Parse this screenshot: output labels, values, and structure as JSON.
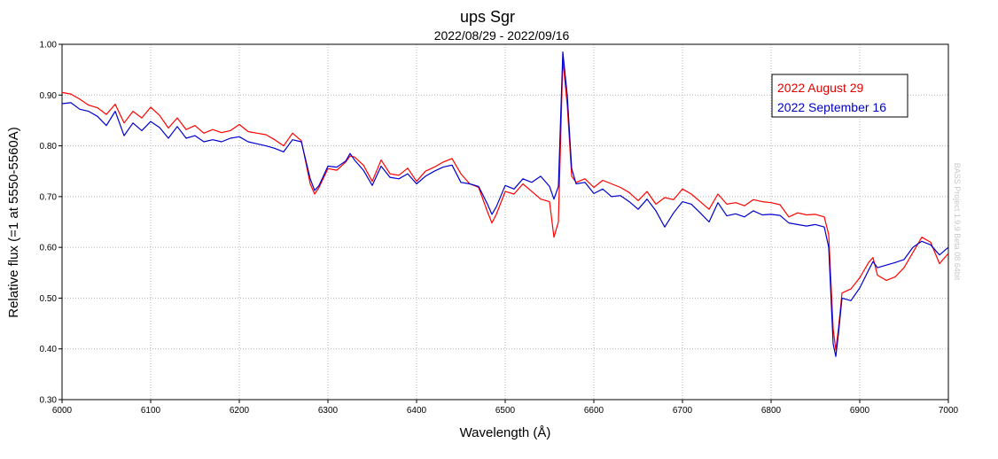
{
  "chart_data": {
    "type": "line",
    "title": "ups Sgr",
    "subtitle": "2022/08/29 - 2022/09/16",
    "xlabel": "Wavelength (Å)",
    "ylabel": "Relative flux (=1 at 5550-5560A)",
    "xlim": [
      6000,
      7000
    ],
    "ylim": [
      0.3,
      1.0
    ],
    "x_ticks": [
      "6000",
      "6100",
      "6200",
      "6300",
      "6400",
      "6500",
      "6600",
      "6700",
      "6800",
      "6900",
      "7000"
    ],
    "y_ticks": [
      "0.30",
      "0.40",
      "0.50",
      "0.60",
      "0.70",
      "0.80",
      "0.90",
      "1.00"
    ],
    "grid": true,
    "legend_position": "top-right",
    "watermark": "BASS Project 1.9.9 Beta 08 64bit",
    "series": [
      {
        "name": "2022 August 29",
        "color": "#ff0000",
        "points": [
          [
            6000,
            0.905
          ],
          [
            6010,
            0.902
          ],
          [
            6020,
            0.892
          ],
          [
            6030,
            0.88
          ],
          [
            6040,
            0.875
          ],
          [
            6050,
            0.862
          ],
          [
            6060,
            0.882
          ],
          [
            6070,
            0.845
          ],
          [
            6080,
            0.868
          ],
          [
            6090,
            0.855
          ],
          [
            6100,
            0.876
          ],
          [
            6110,
            0.86
          ],
          [
            6120,
            0.835
          ],
          [
            6130,
            0.855
          ],
          [
            6140,
            0.832
          ],
          [
            6150,
            0.84
          ],
          [
            6160,
            0.825
          ],
          [
            6170,
            0.832
          ],
          [
            6180,
            0.826
          ],
          [
            6190,
            0.83
          ],
          [
            6200,
            0.842
          ],
          [
            6210,
            0.828
          ],
          [
            6220,
            0.825
          ],
          [
            6230,
            0.822
          ],
          [
            6240,
            0.812
          ],
          [
            6250,
            0.8
          ],
          [
            6260,
            0.825
          ],
          [
            6270,
            0.81
          ],
          [
            6280,
            0.725
          ],
          [
            6285,
            0.705
          ],
          [
            6290,
            0.718
          ],
          [
            6300,
            0.755
          ],
          [
            6310,
            0.752
          ],
          [
            6320,
            0.768
          ],
          [
            6325,
            0.78
          ],
          [
            6330,
            0.778
          ],
          [
            6340,
            0.762
          ],
          [
            6350,
            0.73
          ],
          [
            6360,
            0.772
          ],
          [
            6370,
            0.745
          ],
          [
            6380,
            0.742
          ],
          [
            6390,
            0.756
          ],
          [
            6400,
            0.73
          ],
          [
            6410,
            0.75
          ],
          [
            6420,
            0.758
          ],
          [
            6430,
            0.768
          ],
          [
            6440,
            0.775
          ],
          [
            6450,
            0.745
          ],
          [
            6460,
            0.725
          ],
          [
            6470,
            0.718
          ],
          [
            6480,
            0.67
          ],
          [
            6485,
            0.648
          ],
          [
            6490,
            0.665
          ],
          [
            6500,
            0.71
          ],
          [
            6510,
            0.705
          ],
          [
            6520,
            0.725
          ],
          [
            6530,
            0.71
          ],
          [
            6540,
            0.695
          ],
          [
            6550,
            0.69
          ],
          [
            6555,
            0.62
          ],
          [
            6560,
            0.65
          ],
          [
            6565,
            0.97
          ],
          [
            6570,
            0.88
          ],
          [
            6575,
            0.74
          ],
          [
            6580,
            0.728
          ],
          [
            6590,
            0.735
          ],
          [
            6600,
            0.718
          ],
          [
            6610,
            0.732
          ],
          [
            6620,
            0.725
          ],
          [
            6630,
            0.718
          ],
          [
            6640,
            0.708
          ],
          [
            6650,
            0.692
          ],
          [
            6660,
            0.71
          ],
          [
            6670,
            0.685
          ],
          [
            6680,
            0.698
          ],
          [
            6690,
            0.694
          ],
          [
            6700,
            0.715
          ],
          [
            6710,
            0.705
          ],
          [
            6720,
            0.69
          ],
          [
            6730,
            0.675
          ],
          [
            6740,
            0.705
          ],
          [
            6750,
            0.685
          ],
          [
            6760,
            0.688
          ],
          [
            6770,
            0.682
          ],
          [
            6780,
            0.694
          ],
          [
            6790,
            0.69
          ],
          [
            6800,
            0.688
          ],
          [
            6810,
            0.684
          ],
          [
            6820,
            0.66
          ],
          [
            6830,
            0.668
          ],
          [
            6840,
            0.664
          ],
          [
            6850,
            0.665
          ],
          [
            6860,
            0.66
          ],
          [
            6865,
            0.625
          ],
          [
            6870,
            0.44
          ],
          [
            6873,
            0.398
          ],
          [
            6876,
            0.44
          ],
          [
            6880,
            0.51
          ],
          [
            6890,
            0.518
          ],
          [
            6900,
            0.54
          ],
          [
            6910,
            0.57
          ],
          [
            6915,
            0.58
          ],
          [
            6920,
            0.545
          ],
          [
            6930,
            0.535
          ],
          [
            6940,
            0.542
          ],
          [
            6950,
            0.56
          ],
          [
            6960,
            0.59
          ],
          [
            6970,
            0.62
          ],
          [
            6980,
            0.61
          ],
          [
            6990,
            0.568
          ],
          [
            7000,
            0.588
          ]
        ]
      },
      {
        "name": "2022 September 16",
        "color": "#0000cc",
        "points": [
          [
            6000,
            0.883
          ],
          [
            6010,
            0.885
          ],
          [
            6020,
            0.872
          ],
          [
            6030,
            0.868
          ],
          [
            6040,
            0.858
          ],
          [
            6050,
            0.84
          ],
          [
            6060,
            0.868
          ],
          [
            6070,
            0.82
          ],
          [
            6080,
            0.845
          ],
          [
            6090,
            0.83
          ],
          [
            6100,
            0.848
          ],
          [
            6110,
            0.836
          ],
          [
            6120,
            0.815
          ],
          [
            6130,
            0.838
          ],
          [
            6140,
            0.815
          ],
          [
            6150,
            0.82
          ],
          [
            6160,
            0.808
          ],
          [
            6170,
            0.812
          ],
          [
            6180,
            0.808
          ],
          [
            6190,
            0.815
          ],
          [
            6200,
            0.818
          ],
          [
            6210,
            0.808
          ],
          [
            6220,
            0.804
          ],
          [
            6230,
            0.8
          ],
          [
            6240,
            0.795
          ],
          [
            6250,
            0.788
          ],
          [
            6260,
            0.812
          ],
          [
            6270,
            0.808
          ],
          [
            6280,
            0.735
          ],
          [
            6285,
            0.712
          ],
          [
            6290,
            0.722
          ],
          [
            6300,
            0.76
          ],
          [
            6310,
            0.758
          ],
          [
            6320,
            0.77
          ],
          [
            6325,
            0.785
          ],
          [
            6330,
            0.772
          ],
          [
            6340,
            0.752
          ],
          [
            6350,
            0.722
          ],
          [
            6360,
            0.76
          ],
          [
            6370,
            0.738
          ],
          [
            6380,
            0.735
          ],
          [
            6390,
            0.745
          ],
          [
            6400,
            0.725
          ],
          [
            6410,
            0.74
          ],
          [
            6420,
            0.75
          ],
          [
            6430,
            0.758
          ],
          [
            6440,
            0.762
          ],
          [
            6450,
            0.728
          ],
          [
            6460,
            0.725
          ],
          [
            6470,
            0.72
          ],
          [
            6480,
            0.685
          ],
          [
            6485,
            0.665
          ],
          [
            6490,
            0.68
          ],
          [
            6500,
            0.722
          ],
          [
            6510,
            0.715
          ],
          [
            6520,
            0.735
          ],
          [
            6530,
            0.728
          ],
          [
            6540,
            0.74
          ],
          [
            6550,
            0.72
          ],
          [
            6555,
            0.695
          ],
          [
            6560,
            0.72
          ],
          [
            6565,
            0.985
          ],
          [
            6570,
            0.9
          ],
          [
            6575,
            0.755
          ],
          [
            6580,
            0.725
          ],
          [
            6590,
            0.728
          ],
          [
            6600,
            0.706
          ],
          [
            6610,
            0.715
          ],
          [
            6620,
            0.7
          ],
          [
            6630,
            0.702
          ],
          [
            6640,
            0.69
          ],
          [
            6650,
            0.675
          ],
          [
            6660,
            0.695
          ],
          [
            6670,
            0.672
          ],
          [
            6680,
            0.64
          ],
          [
            6690,
            0.668
          ],
          [
            6700,
            0.69
          ],
          [
            6710,
            0.685
          ],
          [
            6720,
            0.668
          ],
          [
            6730,
            0.65
          ],
          [
            6740,
            0.688
          ],
          [
            6750,
            0.662
          ],
          [
            6760,
            0.666
          ],
          [
            6770,
            0.66
          ],
          [
            6780,
            0.672
          ],
          [
            6790,
            0.664
          ],
          [
            6800,
            0.665
          ],
          [
            6810,
            0.663
          ],
          [
            6820,
            0.648
          ],
          [
            6830,
            0.645
          ],
          [
            6840,
            0.642
          ],
          [
            6850,
            0.645
          ],
          [
            6860,
            0.64
          ],
          [
            6865,
            0.6
          ],
          [
            6870,
            0.41
          ],
          [
            6873,
            0.385
          ],
          [
            6876,
            0.43
          ],
          [
            6880,
            0.5
          ],
          [
            6890,
            0.495
          ],
          [
            6900,
            0.52
          ],
          [
            6910,
            0.555
          ],
          [
            6915,
            0.572
          ],
          [
            6920,
            0.56
          ],
          [
            6930,
            0.565
          ],
          [
            6940,
            0.57
          ],
          [
            6950,
            0.576
          ],
          [
            6960,
            0.6
          ],
          [
            6970,
            0.612
          ],
          [
            6980,
            0.605
          ],
          [
            6990,
            0.585
          ],
          [
            7000,
            0.6
          ]
        ]
      }
    ]
  }
}
